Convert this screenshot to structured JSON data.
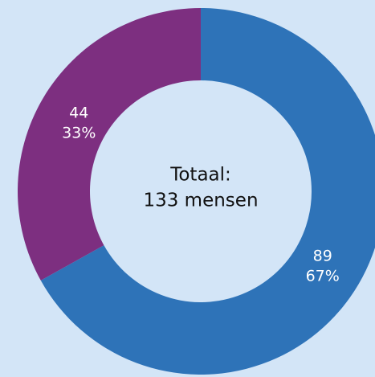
{
  "chart_data": {
    "type": "donut",
    "categories": [
      null,
      null
    ],
    "values": [
      89,
      44
    ],
    "percent_labels": [
      "67%",
      "33%"
    ],
    "colors": [
      "#2e73b8",
      "#7d2f80"
    ],
    "center_label": [
      "Totaal:",
      "133 mensen"
    ]
  }
}
